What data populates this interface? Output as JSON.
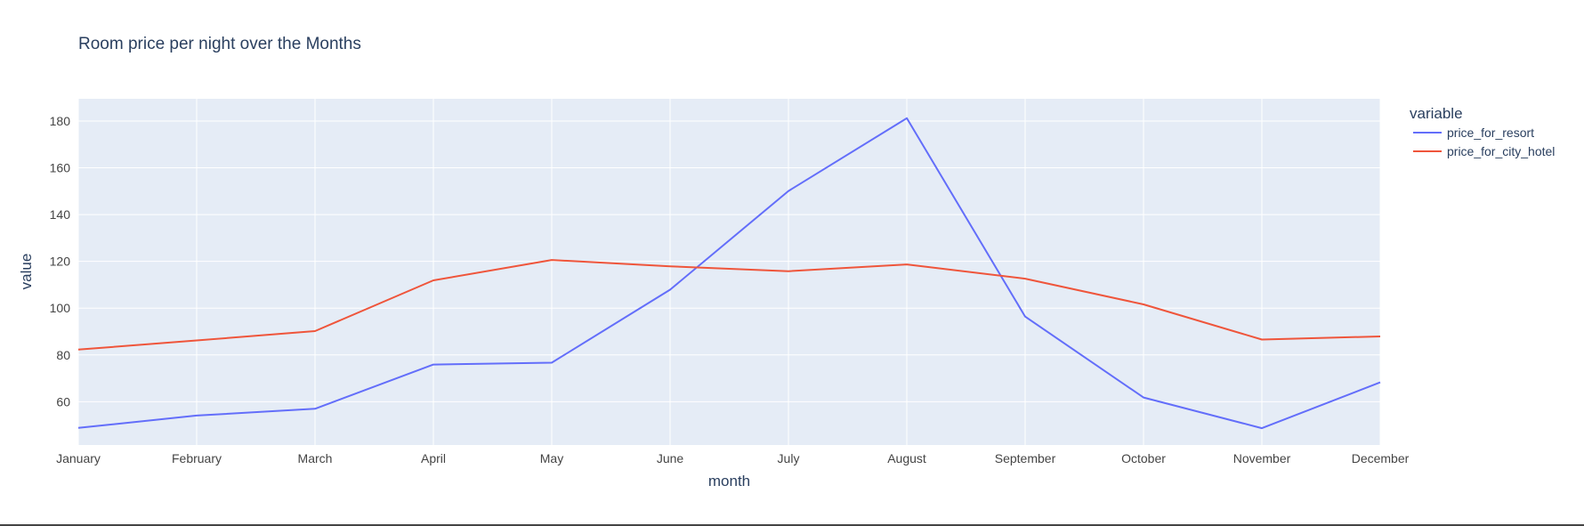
{
  "chart_data": {
    "type": "line",
    "title": "Room price per night over the Months",
    "xlabel": "month",
    "ylabel": "value",
    "legend_title": "variable",
    "legend_position": "top-right",
    "grid": true,
    "categories": [
      "January",
      "February",
      "March",
      "April",
      "May",
      "June",
      "July",
      "August",
      "September",
      "October",
      "November",
      "December"
    ],
    "y_ticks": [
      60,
      80,
      100,
      120,
      140,
      160,
      180
    ],
    "ylim": [
      41.5,
      189.5
    ],
    "series": [
      {
        "name": "price_for_resort",
        "color": "#636efa",
        "values": [
          48.8,
          54.1,
          57.0,
          75.9,
          76.7,
          107.9,
          150.1,
          181.2,
          96.4,
          61.8,
          48.7,
          68.3
        ]
      },
      {
        "name": "price_for_city_hotel",
        "color": "#ef553b",
        "values": [
          82.3,
          86.2,
          90.2,
          111.9,
          120.6,
          117.9,
          115.8,
          118.7,
          112.6,
          101.6,
          86.6,
          87.9
        ]
      }
    ],
    "colors": {
      "plot_bg": "#e5ecf6",
      "grid": "#ffffff",
      "text": "#2a3f5f",
      "tick_text": "#444444"
    }
  }
}
